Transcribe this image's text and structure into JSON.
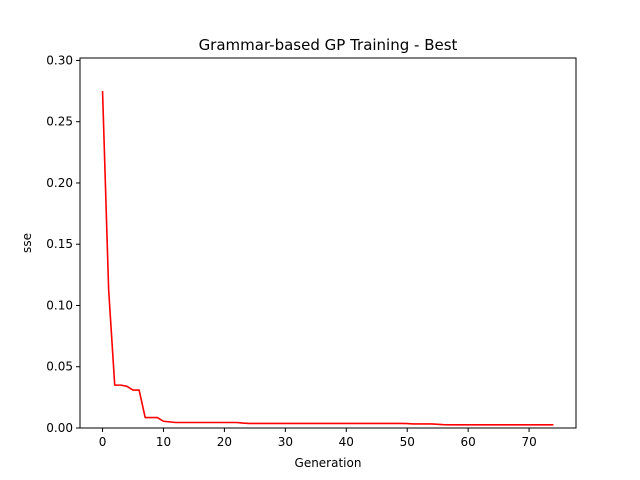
{
  "chart_data": {
    "type": "line",
    "title": "Grammar-based GP Training - Best",
    "xlabel": "Generation",
    "ylabel": "sse",
    "xlim": [
      -3.7,
      77.7
    ],
    "ylim": [
      0.0,
      0.302
    ],
    "xticks": [
      0,
      10,
      20,
      30,
      40,
      50,
      60,
      70
    ],
    "yticks": [
      0.0,
      0.05,
      0.1,
      0.15,
      0.2,
      0.25,
      0.3
    ],
    "ytick_labels": [
      "0.00",
      "0.05",
      "0.10",
      "0.15",
      "0.20",
      "0.25",
      "0.30"
    ],
    "grid": false,
    "series": [
      {
        "color": "#ff0000",
        "x": [
          0,
          1,
          2,
          3,
          4,
          5,
          6,
          7,
          8,
          9,
          10,
          11,
          12,
          13,
          14,
          15,
          16,
          17,
          18,
          19,
          20,
          21,
          22,
          23,
          24,
          25,
          26,
          27,
          28,
          29,
          30,
          31,
          32,
          33,
          34,
          35,
          36,
          37,
          38,
          39,
          40,
          41,
          42,
          43,
          44,
          45,
          46,
          47,
          48,
          49,
          50,
          51,
          52,
          53,
          54,
          55,
          56,
          57,
          58,
          59,
          60,
          61,
          62,
          63,
          64,
          65,
          66,
          67,
          68,
          69,
          70,
          71,
          72,
          73,
          74
        ],
        "values": [
          0.275,
          0.113,
          0.035,
          0.035,
          0.034,
          0.031,
          0.031,
          0.0085,
          0.0085,
          0.0085,
          0.0055,
          0.005,
          0.0045,
          0.0045,
          0.0045,
          0.0045,
          0.0045,
          0.0045,
          0.0045,
          0.0045,
          0.0045,
          0.0045,
          0.0045,
          0.004,
          0.0037,
          0.0037,
          0.0037,
          0.0037,
          0.0037,
          0.0037,
          0.0037,
          0.0037,
          0.0037,
          0.0037,
          0.0037,
          0.0037,
          0.0037,
          0.0037,
          0.0037,
          0.0037,
          0.0037,
          0.0037,
          0.0037,
          0.0037,
          0.0037,
          0.0037,
          0.0037,
          0.0037,
          0.0037,
          0.0037,
          0.0036,
          0.0033,
          0.0033,
          0.0033,
          0.0033,
          0.003,
          0.0027,
          0.0026,
          0.0026,
          0.0026,
          0.0026,
          0.0026,
          0.0026,
          0.0026,
          0.0026,
          0.0026,
          0.0026,
          0.0026,
          0.0026,
          0.0026,
          0.0026,
          0.0026,
          0.0026,
          0.0026,
          0.0026
        ]
      }
    ]
  }
}
